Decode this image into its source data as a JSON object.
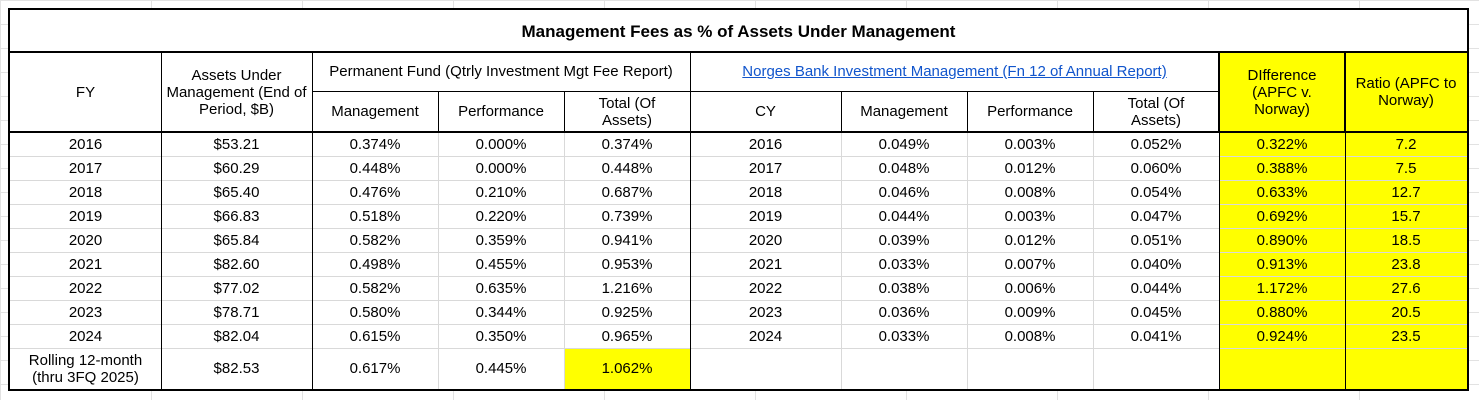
{
  "title": "Management Fees as % of Assets Under Management",
  "headers": {
    "fy": "FY",
    "aum": "Assets Under Management (End of Period, $B)",
    "pf_group": "Permanent Fund (Qtrly Investment Mgt Fee Report)",
    "nbim_group": "Norges Bank Investment Management (Fn 12 of Annual Report)",
    "difference": "DIfference (APFC v. Norway)",
    "ratio": "Ratio (APFC to Norway)",
    "pf_management": "Management",
    "pf_performance": "Performance",
    "pf_total": "Total (Of Assets)",
    "cy": "CY",
    "nb_management": "Management",
    "nb_performance": "Performance",
    "nb_total": "Total (Of Assets)"
  },
  "rows": [
    {
      "fy": "2016",
      "aum": "$53.21",
      "pf_mgmt": "0.374%",
      "pf_perf": "0.000%",
      "pf_total": "0.374%",
      "cy": "2016",
      "nb_mgmt": "0.049%",
      "nb_perf": "0.003%",
      "nb_total": "0.052%",
      "diff": "0.322%",
      "ratio": "7.2"
    },
    {
      "fy": "2017",
      "aum": "$60.29",
      "pf_mgmt": "0.448%",
      "pf_perf": "0.000%",
      "pf_total": "0.448%",
      "cy": "2017",
      "nb_mgmt": "0.048%",
      "nb_perf": "0.012%",
      "nb_total": "0.060%",
      "diff": "0.388%",
      "ratio": "7.5"
    },
    {
      "fy": "2018",
      "aum": "$65.40",
      "pf_mgmt": "0.476%",
      "pf_perf": "0.210%",
      "pf_total": "0.687%",
      "cy": "2018",
      "nb_mgmt": "0.046%",
      "nb_perf": "0.008%",
      "nb_total": "0.054%",
      "diff": "0.633%",
      "ratio": "12.7"
    },
    {
      "fy": "2019",
      "aum": "$66.83",
      "pf_mgmt": "0.518%",
      "pf_perf": "0.220%",
      "pf_total": "0.739%",
      "cy": "2019",
      "nb_mgmt": "0.044%",
      "nb_perf": "0.003%",
      "nb_total": "0.047%",
      "diff": "0.692%",
      "ratio": "15.7"
    },
    {
      "fy": "2020",
      "aum": "$65.84",
      "pf_mgmt": "0.582%",
      "pf_perf": "0.359%",
      "pf_total": "0.941%",
      "cy": "2020",
      "nb_mgmt": "0.039%",
      "nb_perf": "0.012%",
      "nb_total": "0.051%",
      "diff": "0.890%",
      "ratio": "18.5"
    },
    {
      "fy": "2021",
      "aum": "$82.60",
      "pf_mgmt": "0.498%",
      "pf_perf": "0.455%",
      "pf_total": "0.953%",
      "cy": "2021",
      "nb_mgmt": "0.033%",
      "nb_perf": "0.007%",
      "nb_total": "0.040%",
      "diff": "0.913%",
      "ratio": "23.8"
    },
    {
      "fy": "2022",
      "aum": "$77.02",
      "pf_mgmt": "0.582%",
      "pf_perf": "0.635%",
      "pf_total": "1.216%",
      "cy": "2022",
      "nb_mgmt": "0.038%",
      "nb_perf": "0.006%",
      "nb_total": "0.044%",
      "diff": "1.172%",
      "ratio": "27.6"
    },
    {
      "fy": "2023",
      "aum": "$78.71",
      "pf_mgmt": "0.580%",
      "pf_perf": "0.344%",
      "pf_total": "0.925%",
      "cy": "2023",
      "nb_mgmt": "0.036%",
      "nb_perf": "0.009%",
      "nb_total": "0.045%",
      "diff": "0.880%",
      "ratio": "20.5"
    },
    {
      "fy": "2024",
      "aum": "$82.04",
      "pf_mgmt": "0.615%",
      "pf_perf": "0.350%",
      "pf_total": "0.965%",
      "cy": "2024",
      "nb_mgmt": "0.033%",
      "nb_perf": "0.008%",
      "nb_total": "0.041%",
      "diff": "0.924%",
      "ratio": "23.5"
    }
  ],
  "rolling": {
    "label": "Rolling 12-month (thru 3FQ 2025)",
    "aum": "$82.53",
    "pf_mgmt": "0.617%",
    "pf_perf": "0.445%",
    "pf_total": "1.062%"
  },
  "colors": {
    "highlight": "#ffff00",
    "link": "#1155cc",
    "grid": "#e2e2e2"
  }
}
